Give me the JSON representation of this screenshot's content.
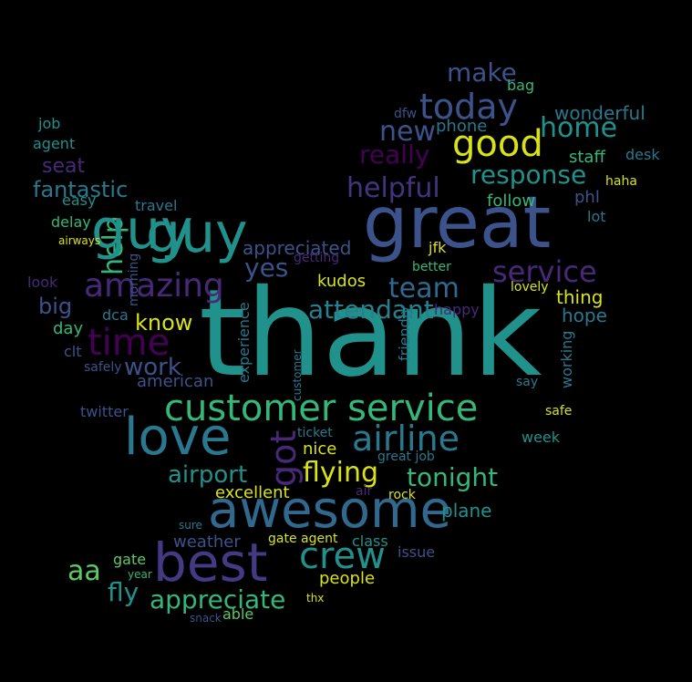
{
  "image": {
    "subject": "word-cloud",
    "background_color": "#000000",
    "palette": [
      "#440154",
      "#3b528b",
      "#21918c",
      "#5ec962",
      "#fde725"
    ],
    "words": [
      {
        "text": "thank",
        "color": "#21918c"
      },
      {
        "text": "great",
        "color": "#3b528b"
      },
      {
        "text": "guy",
        "color": "#21918c"
      },
      {
        "text": "good",
        "color": "#d8e219"
      },
      {
        "text": "customer service",
        "color": "#35b779"
      },
      {
        "text": "love",
        "color": "#2a788e"
      },
      {
        "text": "awesome",
        "color": "#31688e"
      },
      {
        "text": "best",
        "color": "#443983"
      },
      {
        "text": "today",
        "color": "#3b528b"
      },
      {
        "text": "time",
        "color": "#440154"
      },
      {
        "text": "amazing",
        "color": "#482878"
      },
      {
        "text": "airline",
        "color": "#2a788e"
      },
      {
        "text": "crew",
        "color": "#21918c"
      },
      {
        "text": "service",
        "color": "#482878"
      },
      {
        "text": "helpful",
        "color": "#46337f"
      },
      {
        "text": "response",
        "color": "#21918c"
      },
      {
        "text": "home",
        "color": "#21918c"
      },
      {
        "text": "new",
        "color": "#3b528b"
      },
      {
        "text": "make",
        "color": "#3b528b"
      },
      {
        "text": "really",
        "color": "#440154"
      },
      {
        "text": "fantastic",
        "color": "#2a788e"
      },
      {
        "text": "help",
        "color": "#35b779"
      },
      {
        "text": "guy",
        "color": "#21918c"
      },
      {
        "text": "yes",
        "color": "#3b528b"
      },
      {
        "text": "team",
        "color": "#31688e"
      },
      {
        "text": "attendant",
        "color": "#27808e"
      },
      {
        "text": "know",
        "color": "#d8e219"
      },
      {
        "text": "work",
        "color": "#3b528b"
      },
      {
        "text": "appreciated",
        "color": "#3b528b"
      },
      {
        "text": "flying",
        "color": "#d8e219"
      },
      {
        "text": "tonight",
        "color": "#35b779"
      },
      {
        "text": "airport",
        "color": "#21918c"
      },
      {
        "text": "got",
        "color": "#482878"
      },
      {
        "text": "appreciate",
        "color": "#35b779"
      },
      {
        "text": "aa",
        "color": "#5ec962"
      },
      {
        "text": "fly",
        "color": "#21918c"
      },
      {
        "text": "excellent",
        "color": "#d8e219"
      },
      {
        "text": "weather",
        "color": "#3b528b"
      },
      {
        "text": "people",
        "color": "#d8e219"
      },
      {
        "text": "staff",
        "color": "#35b779"
      },
      {
        "text": "wonderful",
        "color": "#2a788e"
      },
      {
        "text": "seat",
        "color": "#482878"
      },
      {
        "text": "big",
        "color": "#3b528b"
      },
      {
        "text": "phone",
        "color": "#2a788e"
      },
      {
        "text": "kudos",
        "color": "#d8e219"
      },
      {
        "text": "hope",
        "color": "#2a788e"
      },
      {
        "text": "thing",
        "color": "#d8e219"
      },
      {
        "text": "nice",
        "color": "#d8e219"
      },
      {
        "text": "happy",
        "color": "#482878"
      },
      {
        "text": "american",
        "color": "#3b528b"
      },
      {
        "text": "twitter",
        "color": "#3b528b"
      },
      {
        "text": "ticket",
        "color": "#2a788e"
      },
      {
        "text": "plane",
        "color": "#21918c"
      },
      {
        "text": "class",
        "color": "#21918c"
      },
      {
        "text": "gate agent",
        "color": "#d8e219"
      },
      {
        "text": "issue",
        "color": "#3b528b"
      },
      {
        "text": "gate",
        "color": "#5ec962"
      },
      {
        "text": "able",
        "color": "#5ec962"
      },
      {
        "text": "snack",
        "color": "#3b528b"
      },
      {
        "text": "thx",
        "color": "#d8e219"
      },
      {
        "text": "agent",
        "color": "#21918c"
      },
      {
        "text": "job",
        "color": "#21918c"
      },
      {
        "text": "easy",
        "color": "#21918c"
      },
      {
        "text": "delay",
        "color": "#35b779"
      },
      {
        "text": "travel",
        "color": "#2a788e"
      },
      {
        "text": "follow",
        "color": "#35b779"
      },
      {
        "text": "phl",
        "color": "#3b528b"
      },
      {
        "text": "lot",
        "color": "#2a788e"
      },
      {
        "text": "desk",
        "color": "#2a788e"
      },
      {
        "text": "haha",
        "color": "#d8e219"
      },
      {
        "text": "bag",
        "color": "#35b779"
      },
      {
        "text": "dfw",
        "color": "#3b528b"
      },
      {
        "text": "jfk",
        "color": "#d8e219"
      },
      {
        "text": "better",
        "color": "#35b779"
      },
      {
        "text": "getting",
        "color": "#482878"
      },
      {
        "text": "look",
        "color": "#482878"
      },
      {
        "text": "day",
        "color": "#35b779"
      },
      {
        "text": "dca",
        "color": "#2a788e"
      },
      {
        "text": "clt",
        "color": "#3b528b"
      },
      {
        "text": "safely",
        "color": "#3b528b"
      },
      {
        "text": "week",
        "color": "#21918c"
      },
      {
        "text": "lovely",
        "color": "#d8e219"
      },
      {
        "text": "say",
        "color": "#2a788e"
      },
      {
        "text": "safe",
        "color": "#d8e219"
      },
      {
        "text": "great job",
        "color": "#2a788e"
      },
      {
        "text": "rock",
        "color": "#d8e219"
      },
      {
        "text": "air",
        "color": "#482878"
      },
      {
        "text": "sure",
        "color": "#2a788e"
      },
      {
        "text": "year",
        "color": "#35b779"
      },
      {
        "text": "airways",
        "color": "#d8e219"
      },
      {
        "text": "experience",
        "color": "#2a788e"
      },
      {
        "text": "friendly",
        "color": "#2a788e"
      },
      {
        "text": "working",
        "color": "#2a788e"
      },
      {
        "text": "morning",
        "color": "#3b528b"
      },
      {
        "text": "customer",
        "color": "#2a788e"
      }
    ]
  }
}
